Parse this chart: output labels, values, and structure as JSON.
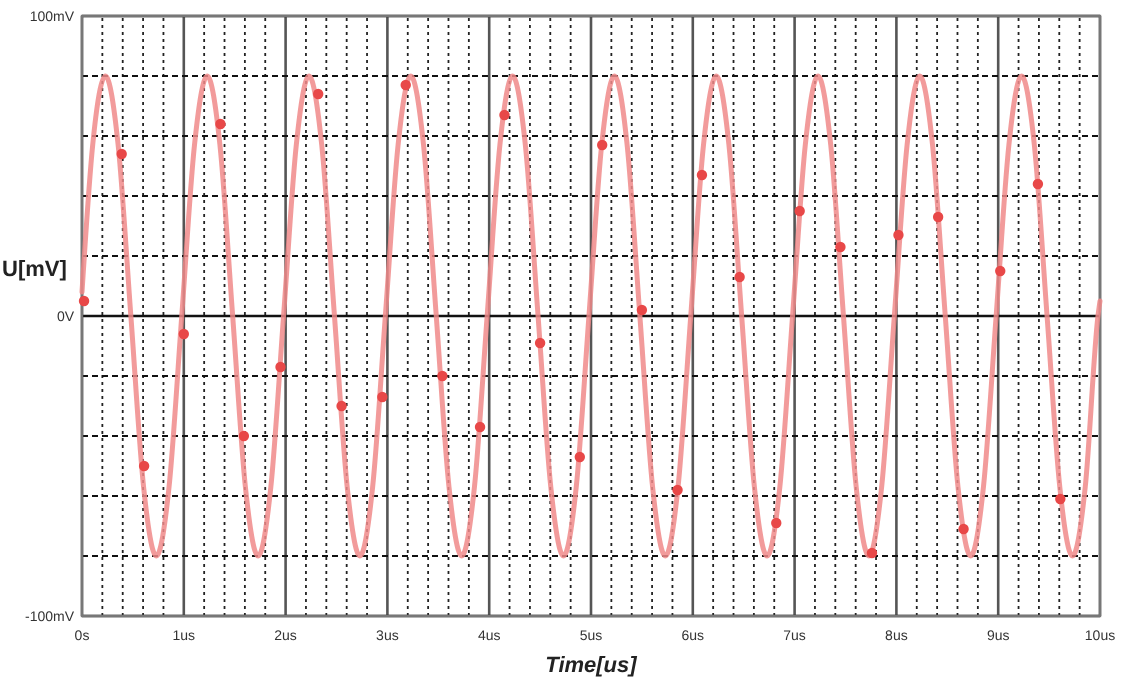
{
  "chart_data": {
    "type": "line",
    "xlabel": "Time[us]",
    "ylabel": "U[mV]",
    "xlim": [
      0,
      10
    ],
    "ylim": [
      -100,
      100
    ],
    "xticks": [
      {
        "value": 0,
        "label": "0s"
      },
      {
        "value": 0.2,
        "label": null
      },
      {
        "value": 0.4,
        "label": null
      },
      {
        "value": 0.6,
        "label": null
      },
      {
        "value": 0.8,
        "label": null
      },
      {
        "value": 1,
        "label": "1us"
      },
      {
        "value": 1.2,
        "label": null
      },
      {
        "value": 1.4,
        "label": null
      },
      {
        "value": 1.6,
        "label": null
      },
      {
        "value": 1.8,
        "label": null
      },
      {
        "value": 2,
        "label": "2us"
      },
      {
        "value": 2.2,
        "label": null
      },
      {
        "value": 2.4,
        "label": null
      },
      {
        "value": 2.6,
        "label": null
      },
      {
        "value": 2.8,
        "label": null
      },
      {
        "value": 3,
        "label": "3us"
      },
      {
        "value": 3.2,
        "label": null
      },
      {
        "value": 3.4,
        "label": null
      },
      {
        "value": 3.6,
        "label": null
      },
      {
        "value": 3.8,
        "label": null
      },
      {
        "value": 4,
        "label": "4us"
      },
      {
        "value": 4.2,
        "label": null
      },
      {
        "value": 4.4,
        "label": null
      },
      {
        "value": 4.6,
        "label": null
      },
      {
        "value": 4.8,
        "label": null
      },
      {
        "value": 5,
        "label": "5us"
      },
      {
        "value": 5.2,
        "label": null
      },
      {
        "value": 5.4,
        "label": null
      },
      {
        "value": 5.6,
        "label": null
      },
      {
        "value": 5.8,
        "label": null
      },
      {
        "value": 6,
        "label": "6us"
      },
      {
        "value": 6.2,
        "label": null
      },
      {
        "value": 6.4,
        "label": null
      },
      {
        "value": 6.6,
        "label": null
      },
      {
        "value": 6.8,
        "label": null
      },
      {
        "value": 7,
        "label": "7us"
      },
      {
        "value": 7.2,
        "label": null
      },
      {
        "value": 7.4,
        "label": null
      },
      {
        "value": 7.6,
        "label": null
      },
      {
        "value": 7.8,
        "label": null
      },
      {
        "value": 8,
        "label": "8us"
      },
      {
        "value": 8.2,
        "label": null
      },
      {
        "value": 8.4,
        "label": null
      },
      {
        "value": 8.6,
        "label": null
      },
      {
        "value": 8.8,
        "label": null
      },
      {
        "value": 9,
        "label": "9us"
      },
      {
        "value": 9.2,
        "label": null
      },
      {
        "value": 9.4,
        "label": null
      },
      {
        "value": 9.6,
        "label": null
      },
      {
        "value": 9.8,
        "label": null
      },
      {
        "value": 10,
        "label": "10us"
      }
    ],
    "yticks": [
      {
        "value": -100,
        "label": "-100mV"
      },
      {
        "value": -80,
        "label": null
      },
      {
        "value": -60,
        "label": null
      },
      {
        "value": -40,
        "label": null
      },
      {
        "value": -20,
        "label": null
      },
      {
        "value": 0,
        "label": "0V"
      },
      {
        "value": 20,
        "label": null
      },
      {
        "value": 40,
        "label": null
      },
      {
        "value": 60,
        "label": null
      },
      {
        "value": 80,
        "label": null
      },
      {
        "value": 100,
        "label": "100mV"
      }
    ],
    "grid": true,
    "series": [
      {
        "color": "#f08a8a",
        "marker": "none",
        "x": [
          0,
          0.105,
          0.23,
          0.355,
          0.48,
          0.605,
          0.73,
          0.855,
          0.98,
          1.105,
          1.23,
          1.355,
          1.48,
          1.605,
          1.73,
          1.855,
          1.98,
          2.105,
          2.23,
          2.355,
          2.48,
          2.605,
          2.73,
          2.855,
          2.98,
          3.105,
          3.23,
          3.355,
          3.48,
          3.605,
          3.73,
          3.855,
          3.98,
          4.105,
          4.23,
          4.355,
          4.48,
          4.605,
          4.73,
          4.855,
          4.98,
          5.105,
          5.23,
          5.355,
          5.48,
          5.605,
          5.73,
          5.855,
          5.98,
          6.105,
          6.23,
          6.355,
          6.48,
          6.605,
          6.73,
          6.855,
          6.98,
          7.105,
          7.23,
          7.355,
          7.48,
          7.605,
          7.73,
          7.855,
          7.98,
          8.105,
          8.23,
          8.355,
          8.48,
          8.605,
          8.73,
          8.855,
          8.98,
          9.105,
          9.23,
          9.355,
          9.48,
          9.605,
          9.73,
          9.855,
          9.98,
          10
        ],
        "values": [
          8,
          57,
          80,
          57,
          0,
          -57,
          -80,
          -57,
          0,
          57,
          80,
          57,
          0,
          -57,
          -80,
          -57,
          0,
          57,
          80,
          57,
          0,
          -57,
          -80,
          -57,
          0,
          57,
          80,
          57,
          0,
          -57,
          -80,
          -57,
          0,
          57,
          80,
          57,
          0,
          -57,
          -80,
          -57,
          0,
          57,
          80,
          57,
          0,
          -57,
          -80,
          -57,
          0,
          57,
          80,
          57,
          0,
          -57,
          -80,
          -57,
          0,
          57,
          80,
          57,
          0,
          -57,
          -80,
          -57,
          0,
          57,
          80,
          57,
          0,
          -57,
          -80,
          -57,
          0,
          57,
          80,
          57,
          0,
          -57,
          -80,
          -57,
          0,
          5
        ]
      },
      {
        "type": "scatter",
        "color": "#e84848",
        "marker": "circle",
        "x": [
          0.02,
          0.39,
          0.61,
          1.0,
          1.36,
          1.59,
          1.95,
          2.32,
          2.55,
          2.95,
          3.18,
          3.54,
          3.91,
          4.15,
          4.5,
          4.89,
          5.11,
          5.5,
          5.85,
          6.09,
          6.46,
          6.82,
          7.05,
          7.45,
          7.76,
          8.02,
          8.41,
          8.66,
          9.02,
          9.39,
          9.61
        ],
        "values": [
          5,
          54,
          -50,
          -6,
          64,
          -40,
          -17,
          74,
          -30,
          -27,
          77,
          -20,
          -37,
          67,
          -9,
          -47,
          57,
          2,
          -58,
          47,
          13,
          -69,
          35,
          23,
          -79,
          27,
          33,
          -71,
          15,
          44,
          -61
        ]
      }
    ]
  }
}
